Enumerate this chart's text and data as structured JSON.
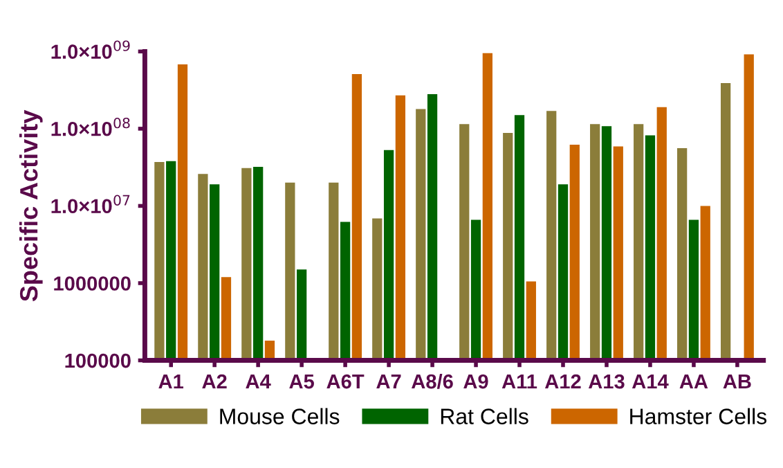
{
  "chart_data": {
    "type": "bar",
    "ylabel": "Specific Activity",
    "log": "y",
    "categories": [
      "A1",
      "A2",
      "A4",
      "A5",
      "A6T",
      "A7",
      "A8/6",
      "A9",
      "A11",
      "A12",
      "A13",
      "A14",
      "AA",
      "AB"
    ],
    "series": [
      {
        "name": "Mouse Cells",
        "color": "#8b7d3a",
        "values": [
          37000000.0,
          26000000.0,
          31000000.0,
          20000000.0,
          20000000.0,
          6900000.0,
          180000000.0,
          115000000.0,
          88000000.0,
          170000000.0,
          115000000.0,
          115000000.0,
          56000000.0,
          390000000.0
        ]
      },
      {
        "name": "Rat Cells",
        "color": "#006400",
        "values": [
          38000000.0,
          19000000.0,
          32000000.0,
          1500000.0,
          6200000.0,
          53000000.0,
          280000000.0,
          6600000.0,
          150000000.0,
          19000000.0,
          108000000.0,
          82000000.0,
          6600000.0,
          null
        ]
      },
      {
        "name": "Hamster Cells",
        "color": "#cc6600",
        "values": [
          680000000.0,
          1200000.0,
          180000.0,
          null,
          510000000.0,
          270000000.0,
          null,
          950000000.0,
          1050000.0,
          62000000.0,
          59000000.0,
          190000000.0,
          10000000.0,
          920000000.0
        ]
      }
    ],
    "ylim": [
      100000,
      1000000000
    ],
    "yticks": [
      100000,
      1000000,
      {
        "value": 10000000,
        "label": "1.0×10$^{07}$"
      },
      {
        "value": 100000000,
        "label": "1.0×10$^{08}$"
      },
      {
        "value": 1000000000,
        "label": "1.0×10$^{09}$"
      }
    ],
    "grid": false,
    "legend": "bottom"
  }
}
